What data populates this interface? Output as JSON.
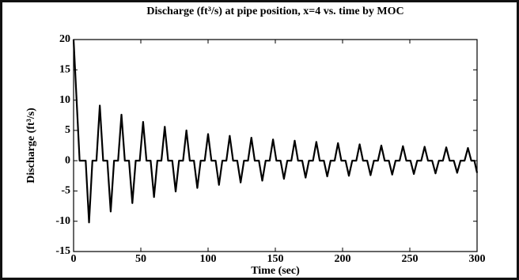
{
  "chart_data": {
    "type": "line",
    "title": "Discharge (ft³/s) at pipe position, x=4 vs. time by MOC",
    "x_label": "Time (sec)",
    "y_label": "Discharge (ft³/s)",
    "xlim": [
      0,
      300
    ],
    "xticks": [
      0,
      50,
      100,
      150,
      200,
      250,
      300
    ],
    "ylim": [
      -15,
      20
    ],
    "yticks": [
      -15,
      -10,
      -5,
      0,
      5,
      10,
      15,
      20
    ],
    "grid": false,
    "series": [
      {
        "color": "#000000",
        "x": [
          0,
          4.5,
          9,
          11.5,
          14,
          17,
          19.5,
          22,
          25.1,
          27.6,
          30.1,
          33.1,
          35.6,
          38.1,
          41.2,
          43.7,
          46.2,
          49.2,
          51.7,
          54.2,
          57.3,
          59.8,
          62.3,
          65.3,
          67.8,
          70.3,
          73.4,
          75.9,
          78.4,
          81.4,
          83.9,
          86.4,
          89.5,
          92,
          94.5,
          97.5,
          100,
          102.5,
          105.6,
          108.1,
          110.6,
          113.6,
          116.1,
          118.6,
          121.7,
          124.2,
          126.7,
          129.7,
          132.2,
          134.7,
          137.8,
          140.3,
          142.8,
          145.8,
          148.3,
          150.8,
          153.9,
          156.4,
          158.9,
          161.9,
          164.4,
          166.9,
          170,
          172.5,
          175,
          178,
          180.5,
          183,
          186.1,
          188.6,
          191.1,
          194.1,
          196.6,
          199.1,
          202.2,
          204.7,
          207.2,
          210.2,
          212.7,
          215.2,
          218.3,
          220.8,
          223.3,
          226.3,
          228.8,
          231.3,
          234.4,
          236.9,
          239.4,
          242.4,
          244.9,
          247.4,
          250.5,
          253,
          255.5,
          258.5,
          261,
          263.5,
          266.6,
          269.1,
          271.6,
          274.6,
          277.1,
          279.6,
          282.7,
          285.2,
          287.7,
          290.7,
          293.2,
          295.7,
          298,
          300
        ],
        "values": [
          20,
          0,
          0,
          -10.2,
          0,
          0,
          9.1,
          0,
          0,
          -8.4,
          0,
          0,
          7.6,
          0,
          0,
          -7.0,
          0,
          0,
          6.4,
          0,
          0,
          -6.0,
          0,
          0,
          5.6,
          0,
          0,
          -5.1,
          0,
          0,
          5.0,
          0,
          0,
          -4.5,
          0,
          0,
          4.4,
          0,
          0,
          -4.0,
          0,
          0,
          4.1,
          0,
          0,
          -3.6,
          0,
          0,
          3.8,
          0,
          0,
          -3.3,
          0,
          0,
          3.5,
          0,
          0,
          -3.0,
          0,
          0,
          3.3,
          0,
          0,
          -2.8,
          0,
          0,
          3.1,
          0,
          0,
          -2.6,
          0,
          0,
          2.9,
          0,
          0,
          -2.5,
          0,
          0,
          2.7,
          0,
          0,
          -2.4,
          0,
          0,
          2.5,
          0,
          0,
          -2.3,
          0,
          0,
          2.4,
          0,
          0,
          -2.2,
          0,
          0,
          2.3,
          0,
          0,
          -2.1,
          0,
          0,
          2.2,
          0,
          0,
          -2.0,
          0,
          0,
          2.1,
          0,
          0,
          -2
        ]
      }
    ]
  }
}
